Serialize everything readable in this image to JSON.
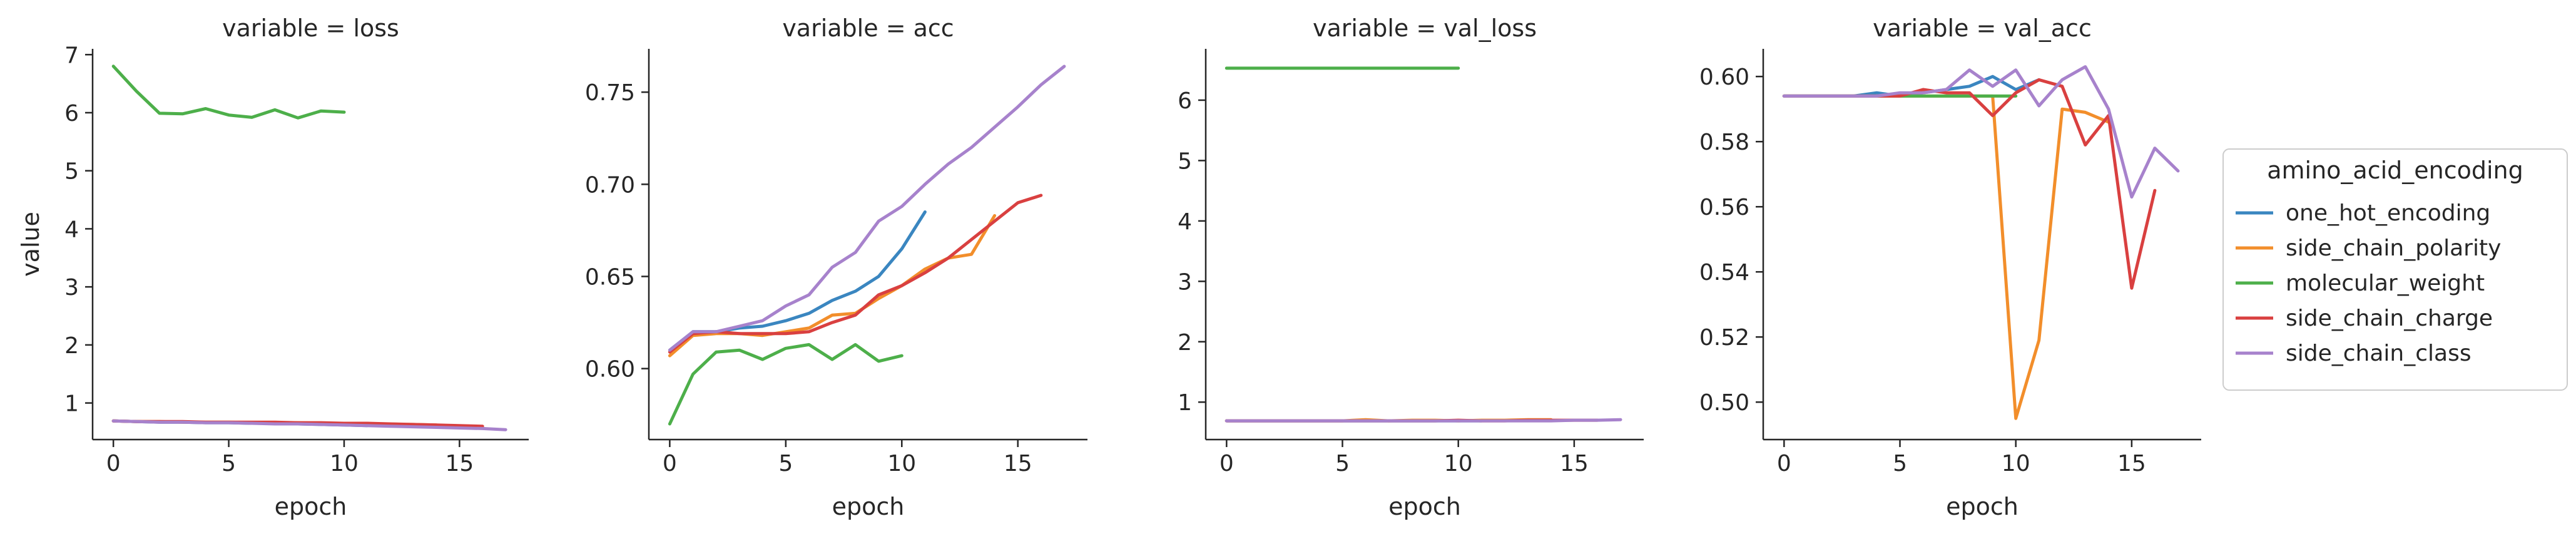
{
  "chart_data": {
    "type": "line",
    "title": "",
    "legend": {
      "title": "amino_acid_encoding",
      "placement": "right",
      "entries": [
        "one_hot_encoding",
        "side_chain_polarity",
        "molecular_weight",
        "side_chain_charge",
        "side_chain_class"
      ]
    },
    "colors": {
      "one_hot_encoding": "#3a86c0",
      "side_chain_polarity": "#f28e2b",
      "molecular_weight": "#4daf4a",
      "side_chain_charge": "#d94040",
      "side_chain_class": "#a782cc"
    },
    "panels": [
      {
        "title": "variable = loss",
        "xlabel": "epoch",
        "ylabel": "value",
        "xlim": [
          -0.9,
          18.0
        ],
        "ylim": [
          0.37,
          7.1
        ],
        "xticks": [
          0,
          5,
          10,
          15
        ],
        "yticks": [
          1,
          2,
          3,
          4,
          5,
          6,
          7
        ],
        "grid": false,
        "series": [
          {
            "name": "one_hot_encoding",
            "x": [
              0,
              1,
              2,
              3,
              4,
              5,
              6,
              7,
              8,
              9,
              10,
              11
            ],
            "y": [
              0.69,
              0.68,
              0.67,
              0.67,
              0.66,
              0.66,
              0.65,
              0.65,
              0.64,
              0.63,
              0.62,
              0.61
            ]
          },
          {
            "name": "side_chain_polarity",
            "x": [
              0,
              1,
              2,
              3,
              4,
              5,
              6,
              7,
              8,
              9,
              10,
              11,
              12,
              13,
              14
            ],
            "y": [
              0.69,
              0.68,
              0.68,
              0.67,
              0.67,
              0.67,
              0.66,
              0.66,
              0.66,
              0.65,
              0.65,
              0.64,
              0.63,
              0.63,
              0.62
            ]
          },
          {
            "name": "molecular_weight",
            "x": [
              0,
              1,
              2,
              3,
              4,
              5,
              6,
              7,
              8,
              9,
              10
            ],
            "y": [
              6.8,
              6.37,
              5.99,
              5.98,
              6.07,
              5.96,
              5.92,
              6.05,
              5.91,
              6.03,
              6.01
            ]
          },
          {
            "name": "side_chain_charge",
            "x": [
              0,
              1,
              2,
              3,
              4,
              5,
              6,
              7,
              8,
              9,
              10,
              11,
              12,
              13,
              14,
              15,
              16
            ],
            "y": [
              0.69,
              0.68,
              0.68,
              0.68,
              0.67,
              0.67,
              0.67,
              0.67,
              0.66,
              0.66,
              0.65,
              0.65,
              0.64,
              0.63,
              0.62,
              0.61,
              0.6
            ]
          },
          {
            "name": "side_chain_class",
            "x": [
              0,
              1,
              2,
              3,
              4,
              5,
              6,
              7,
              8,
              9,
              10,
              11,
              12,
              13,
              14,
              15,
              16,
              17
            ],
            "y": [
              0.69,
              0.68,
              0.67,
              0.67,
              0.66,
              0.66,
              0.65,
              0.64,
              0.64,
              0.63,
              0.62,
              0.61,
              0.6,
              0.59,
              0.58,
              0.57,
              0.56,
              0.54
            ]
          }
        ]
      },
      {
        "title": "variable = acc",
        "xlabel": "epoch",
        "ylabel": "",
        "xlim": [
          -0.9,
          18.0
        ],
        "ylim": [
          0.5615,
          0.7735
        ],
        "xticks": [
          0,
          5,
          10,
          15
        ],
        "yticks": [
          0.6,
          0.65,
          0.7,
          0.75
        ],
        "ytick_labels": [
          "0.60",
          "0.65",
          "0.70",
          "0.75"
        ],
        "grid": false,
        "series": [
          {
            "name": "one_hot_encoding",
            "x": [
              0,
              1,
              2,
              3,
              4,
              5,
              6,
              7,
              8,
              9,
              10,
              11
            ],
            "y": [
              0.61,
              0.62,
              0.62,
              0.622,
              0.623,
              0.626,
              0.63,
              0.637,
              0.642,
              0.65,
              0.665,
              0.685
            ]
          },
          {
            "name": "side_chain_polarity",
            "x": [
              0,
              1,
              2,
              3,
              4,
              5,
              6,
              7,
              8,
              9,
              10,
              11,
              12,
              13,
              14
            ],
            "y": [
              0.607,
              0.618,
              0.619,
              0.619,
              0.618,
              0.62,
              0.622,
              0.629,
              0.63,
              0.638,
              0.645,
              0.654,
              0.66,
              0.662,
              0.683
            ]
          },
          {
            "name": "molecular_weight",
            "x": [
              0,
              1,
              2,
              3,
              4,
              5,
              6,
              7,
              8,
              9,
              10
            ],
            "y": [
              0.57,
              0.597,
              0.609,
              0.61,
              0.605,
              0.611,
              0.613,
              0.605,
              0.613,
              0.604,
              0.607
            ]
          },
          {
            "name": "side_chain_charge",
            "x": [
              0,
              1,
              2,
              3,
              4,
              5,
              6,
              7,
              8,
              9,
              10,
              11,
              12,
              13,
              14,
              15,
              16
            ],
            "y": [
              0.609,
              0.619,
              0.62,
              0.619,
              0.619,
              0.619,
              0.62,
              0.625,
              0.629,
              0.64,
              0.645,
              0.652,
              0.66,
              0.67,
              0.68,
              0.69,
              0.694
            ]
          },
          {
            "name": "side_chain_class",
            "x": [
              0,
              1,
              2,
              3,
              4,
              5,
              6,
              7,
              8,
              9,
              10,
              11,
              12,
              13,
              14,
              15,
              16,
              17
            ],
            "y": [
              0.61,
              0.62,
              0.62,
              0.623,
              0.626,
              0.634,
              0.64,
              0.655,
              0.663,
              0.68,
              0.688,
              0.7,
              0.711,
              0.72,
              0.731,
              0.742,
              0.754,
              0.764
            ]
          }
        ]
      },
      {
        "title": "variable = val_loss",
        "xlabel": "epoch",
        "ylabel": "",
        "xlim": [
          -0.9,
          18.0
        ],
        "ylim": [
          0.38,
          6.85
        ],
        "xticks": [
          0,
          5,
          10,
          15
        ],
        "yticks": [
          1,
          2,
          3,
          4,
          5,
          6
        ],
        "grid": false,
        "series": [
          {
            "name": "one_hot_encoding",
            "x": [
              0,
              1,
              2,
              3,
              4,
              5,
              6,
              7,
              8,
              9,
              10,
              11
            ],
            "y": [
              0.69,
              0.69,
              0.69,
              0.69,
              0.69,
              0.69,
              0.69,
              0.69,
              0.69,
              0.69,
              0.69,
              0.69
            ]
          },
          {
            "name": "side_chain_polarity",
            "x": [
              0,
              1,
              2,
              3,
              4,
              5,
              6,
              7,
              8,
              9,
              10,
              11,
              12,
              13,
              14
            ],
            "y": [
              0.69,
              0.69,
              0.69,
              0.69,
              0.69,
              0.69,
              0.71,
              0.69,
              0.7,
              0.7,
              0.69,
              0.7,
              0.7,
              0.71,
              0.71
            ]
          },
          {
            "name": "molecular_weight",
            "x": [
              0,
              1,
              2,
              3,
              4,
              5,
              6,
              7,
              8,
              9,
              10
            ],
            "y": [
              6.53,
              6.53,
              6.53,
              6.53,
              6.53,
              6.53,
              6.53,
              6.53,
              6.53,
              6.53,
              6.53
            ]
          },
          {
            "name": "side_chain_charge",
            "x": [
              0,
              1,
              2,
              3,
              4,
              5,
              6,
              7,
              8,
              9,
              10,
              11,
              12,
              13,
              14,
              15,
              16
            ],
            "y": [
              0.69,
              0.69,
              0.69,
              0.69,
              0.69,
              0.69,
              0.69,
              0.69,
              0.69,
              0.69,
              0.7,
              0.69,
              0.69,
              0.7,
              0.7,
              0.7,
              0.7
            ]
          },
          {
            "name": "side_chain_class",
            "x": [
              0,
              1,
              2,
              3,
              4,
              5,
              6,
              7,
              8,
              9,
              10,
              11,
              12,
              13,
              14,
              15,
              16,
              17
            ],
            "y": [
              0.69,
              0.69,
              0.69,
              0.69,
              0.69,
              0.69,
              0.69,
              0.69,
              0.69,
              0.69,
              0.69,
              0.69,
              0.69,
              0.69,
              0.69,
              0.7,
              0.7,
              0.71
            ]
          }
        ]
      },
      {
        "title": "variable = val_acc",
        "xlabel": "epoch",
        "ylabel": "",
        "xlim": [
          -0.9,
          18.0
        ],
        "ylim": [
          0.4885,
          0.6085
        ],
        "xticks": [
          0,
          5,
          10,
          15
        ],
        "yticks": [
          0.5,
          0.52,
          0.54,
          0.56,
          0.58,
          0.6
        ],
        "ytick_labels": [
          "0.50",
          "0.52",
          "0.54",
          "0.56",
          "0.58",
          "0.60"
        ],
        "grid": false,
        "series": [
          {
            "name": "one_hot_encoding",
            "x": [
              0,
              1,
              2,
              3,
              4,
              5,
              6,
              7,
              8,
              9,
              10,
              11
            ],
            "y": [
              0.594,
              0.594,
              0.594,
              0.594,
              0.595,
              0.594,
              0.595,
              0.596,
              0.597,
              0.6,
              0.596,
              0.599
            ]
          },
          {
            "name": "side_chain_polarity",
            "x": [
              0,
              1,
              2,
              3,
              4,
              5,
              6,
              7,
              8,
              9,
              10,
              11,
              12,
              13,
              14
            ],
            "y": [
              0.594,
              0.594,
              0.594,
              0.594,
              0.594,
              0.594,
              0.594,
              0.594,
              0.594,
              0.594,
              0.495,
              0.519,
              0.59,
              0.589,
              0.586
            ]
          },
          {
            "name": "molecular_weight",
            "x": [
              0,
              1,
              2,
              3,
              4,
              5,
              6,
              7,
              8,
              9,
              10
            ],
            "y": [
              0.594,
              0.594,
              0.594,
              0.594,
              0.594,
              0.594,
              0.594,
              0.594,
              0.594,
              0.594,
              0.594
            ]
          },
          {
            "name": "side_chain_charge",
            "x": [
              0,
              1,
              2,
              3,
              4,
              5,
              6,
              7,
              8,
              9,
              10,
              11,
              12,
              13,
              14,
              15,
              16
            ],
            "y": [
              0.594,
              0.594,
              0.594,
              0.594,
              0.594,
              0.594,
              0.596,
              0.595,
              0.595,
              0.588,
              0.595,
              0.599,
              0.597,
              0.579,
              0.588,
              0.535,
              0.565
            ]
          },
          {
            "name": "side_chain_class",
            "x": [
              0,
              1,
              2,
              3,
              4,
              5,
              6,
              7,
              8,
              9,
              10,
              11,
              12,
              13,
              14,
              15,
              16,
              17
            ],
            "y": [
              0.594,
              0.594,
              0.594,
              0.594,
              0.594,
              0.595,
              0.595,
              0.596,
              0.602,
              0.597,
              0.602,
              0.591,
              0.599,
              0.603,
              0.59,
              0.563,
              0.578,
              0.571
            ]
          }
        ]
      }
    ]
  }
}
